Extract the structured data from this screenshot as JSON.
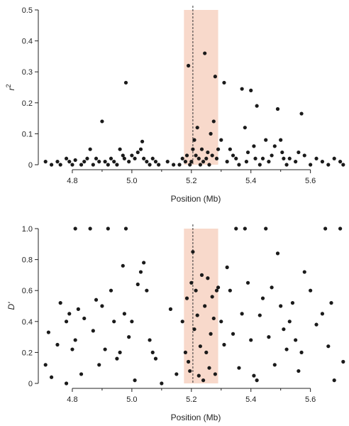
{
  "chart_data": [
    {
      "type": "scatter",
      "panel": "top",
      "xlabel": "Position (Mb)",
      "ylabel": "r",
      "ylabel_superscript": "2",
      "xlim": [
        4.7,
        5.72
      ],
      "ylim": [
        0,
        0.5
      ],
      "x_ticks": [
        4.8,
        5.0,
        5.2,
        5.4,
        5.6
      ],
      "x_tick_labels": [
        "4.8",
        "5.0",
        "5.2",
        "5.4",
        "5.6"
      ],
      "y_ticks": [
        0,
        0.1,
        0.2,
        0.3,
        0.4,
        0.5
      ],
      "y_tick_labels": [
        "0",
        "0.1",
        "0.2",
        "0.3",
        "0.4",
        "0.5"
      ],
      "grid": false,
      "highlight_region": [
        5.175,
        5.29
      ],
      "highlight_color": "#f8d9cb",
      "reference_line_x": 5.205,
      "point_color": "#1a1a1a",
      "points": [
        [
          4.71,
          0.01
        ],
        [
          4.73,
          0.0
        ],
        [
          4.75,
          0.01
        ],
        [
          4.76,
          0.0
        ],
        [
          4.78,
          0.02
        ],
        [
          4.79,
          0.01
        ],
        [
          4.8,
          0.0
        ],
        [
          4.81,
          0.015
        ],
        [
          4.83,
          0.0
        ],
        [
          4.84,
          0.01
        ],
        [
          4.85,
          0.02
        ],
        [
          4.86,
          0.05
        ],
        [
          4.87,
          0.0
        ],
        [
          4.88,
          0.02
        ],
        [
          4.89,
          0.01
        ],
        [
          4.9,
          0.14
        ],
        [
          4.91,
          0.01
        ],
        [
          4.92,
          0.0
        ],
        [
          4.93,
          0.02
        ],
        [
          4.94,
          0.01
        ],
        [
          4.95,
          0.0
        ],
        [
          4.96,
          0.05
        ],
        [
          4.97,
          0.03
        ],
        [
          4.975,
          0.02
        ],
        [
          4.98,
          0.265
        ],
        [
          4.99,
          0.01
        ],
        [
          5.0,
          0.03
        ],
        [
          5.01,
          0.02
        ],
        [
          5.02,
          0.04
        ],
        [
          5.03,
          0.05
        ],
        [
          5.035,
          0.075
        ],
        [
          5.04,
          0.02
        ],
        [
          5.05,
          0.01
        ],
        [
          5.06,
          0.0
        ],
        [
          5.07,
          0.02
        ],
        [
          5.08,
          0.01
        ],
        [
          5.09,
          0.0
        ],
        [
          5.12,
          0.01
        ],
        [
          5.14,
          0.0
        ],
        [
          5.16,
          0.0
        ],
        [
          5.17,
          0.02
        ],
        [
          5.18,
          0.01
        ],
        [
          5.185,
          0.03
        ],
        [
          5.19,
          0.32
        ],
        [
          5.195,
          0.0
        ],
        [
          5.2,
          0.01
        ],
        [
          5.205,
          0.05
        ],
        [
          5.21,
          0.08
        ],
        [
          5.215,
          0.03
        ],
        [
          5.22,
          0.12
        ],
        [
          5.225,
          0.02
        ],
        [
          5.23,
          0.0
        ],
        [
          5.235,
          0.05
        ],
        [
          5.24,
          0.01
        ],
        [
          5.245,
          0.36
        ],
        [
          5.25,
          0.02
        ],
        [
          5.255,
          0.04
        ],
        [
          5.26,
          0.0
        ],
        [
          5.265,
          0.1
        ],
        [
          5.27,
          0.03
        ],
        [
          5.275,
          0.14
        ],
        [
          5.28,
          0.285
        ],
        [
          5.285,
          0.02
        ],
        [
          5.29,
          0.05
        ],
        [
          5.3,
          0.08
        ],
        [
          5.31,
          0.265
        ],
        [
          5.32,
          0.01
        ],
        [
          5.33,
          0.05
        ],
        [
          5.34,
          0.03
        ],
        [
          5.35,
          0.02
        ],
        [
          5.36,
          0.0
        ],
        [
          5.37,
          0.245
        ],
        [
          5.38,
          0.12
        ],
        [
          5.385,
          0.01
        ],
        [
          5.39,
          0.04
        ],
        [
          5.4,
          0.24
        ],
        [
          5.41,
          0.06
        ],
        [
          5.415,
          0.02
        ],
        [
          5.42,
          0.19
        ],
        [
          5.43,
          0.0
        ],
        [
          5.44,
          0.02
        ],
        [
          5.45,
          0.08
        ],
        [
          5.46,
          0.01
        ],
        [
          5.47,
          0.03
        ],
        [
          5.48,
          0.06
        ],
        [
          5.49,
          0.18
        ],
        [
          5.5,
          0.08
        ],
        [
          5.505,
          0.04
        ],
        [
          5.51,
          0.02
        ],
        [
          5.52,
          0.0
        ],
        [
          5.53,
          0.02
        ],
        [
          5.55,
          0.01
        ],
        [
          5.56,
          0.04
        ],
        [
          5.57,
          0.165
        ],
        [
          5.58,
          0.03
        ],
        [
          5.6,
          0.0
        ],
        [
          5.62,
          0.02
        ],
        [
          5.64,
          0.01
        ],
        [
          5.66,
          0.0
        ],
        [
          5.68,
          0.02
        ],
        [
          5.7,
          0.01
        ],
        [
          5.71,
          0.0
        ]
      ]
    },
    {
      "type": "scatter",
      "panel": "bottom",
      "xlabel": "Position (Mb)",
      "ylabel": "D'",
      "xlim": [
        4.7,
        5.72
      ],
      "ylim": [
        0,
        1.0
      ],
      "x_ticks": [
        4.8,
        5.0,
        5.2,
        5.4,
        5.6
      ],
      "x_tick_labels": [
        "4.8",
        "5.0",
        "5.2",
        "5.4",
        "5.6"
      ],
      "y_ticks": [
        0,
        0.2,
        0.4,
        0.6,
        0.8,
        1.0
      ],
      "y_tick_labels": [
        "0",
        "0.2",
        "0.4",
        "0.6",
        "0.8",
        "1.0"
      ],
      "grid": false,
      "highlight_region": [
        5.175,
        5.29
      ],
      "highlight_color": "#f8d9cb",
      "reference_line_x": 5.205,
      "point_color": "#1a1a1a",
      "points": [
        [
          4.71,
          0.12
        ],
        [
          4.72,
          0.33
        ],
        [
          4.73,
          0.04
        ],
        [
          4.75,
          0.25
        ],
        [
          4.76,
          0.52
        ],
        [
          4.78,
          0.0
        ],
        [
          4.78,
          0.4
        ],
        [
          4.79,
          0.45
        ],
        [
          4.8,
          0.22
        ],
        [
          4.81,
          0.28
        ],
        [
          4.81,
          1.0
        ],
        [
          4.82,
          0.48
        ],
        [
          4.83,
          0.06
        ],
        [
          4.84,
          0.42
        ],
        [
          4.86,
          1.0
        ],
        [
          4.87,
          0.34
        ],
        [
          4.88,
          0.54
        ],
        [
          4.89,
          0.12
        ],
        [
          4.9,
          0.5
        ],
        [
          4.91,
          0.22
        ],
        [
          4.92,
          1.0
        ],
        [
          4.93,
          0.6
        ],
        [
          4.94,
          0.4
        ],
        [
          4.95,
          0.16
        ],
        [
          4.96,
          0.2
        ],
        [
          4.97,
          0.76
        ],
        [
          4.975,
          0.45
        ],
        [
          4.98,
          1.0
        ],
        [
          4.99,
          0.3
        ],
        [
          5.0,
          0.4
        ],
        [
          5.01,
          0.02
        ],
        [
          5.02,
          0.64
        ],
        [
          5.03,
          0.72
        ],
        [
          5.04,
          0.78
        ],
        [
          5.05,
          0.6
        ],
        [
          5.06,
          0.28
        ],
        [
          5.07,
          0.2
        ],
        [
          5.08,
          0.16
        ],
        [
          5.1,
          0.0
        ],
        [
          5.13,
          0.48
        ],
        [
          5.15,
          0.06
        ],
        [
          5.17,
          0.4
        ],
        [
          5.18,
          0.2
        ],
        [
          5.185,
          0.55
        ],
        [
          5.19,
          0.14
        ],
        [
          5.195,
          0.08
        ],
        [
          5.2,
          0.65
        ],
        [
          5.205,
          0.85
        ],
        [
          5.21,
          0.35
        ],
        [
          5.215,
          0.6
        ],
        [
          5.22,
          0.44
        ],
        [
          5.225,
          0.05
        ],
        [
          5.23,
          0.24
        ],
        [
          5.235,
          0.7
        ],
        [
          5.24,
          0.02
        ],
        [
          5.245,
          0.5
        ],
        [
          5.25,
          0.2
        ],
        [
          5.255,
          0.68
        ],
        [
          5.26,
          0.1
        ],
        [
          5.265,
          0.32
        ],
        [
          5.27,
          0.56
        ],
        [
          5.275,
          0.42
        ],
        [
          5.28,
          0.06
        ],
        [
          5.285,
          0.6
        ],
        [
          5.29,
          0.62
        ],
        [
          5.3,
          0.4
        ],
        [
          5.31,
          0.25
        ],
        [
          5.32,
          0.75
        ],
        [
          5.33,
          0.6
        ],
        [
          5.34,
          0.32
        ],
        [
          5.35,
          1.0
        ],
        [
          5.36,
          0.1
        ],
        [
          5.37,
          0.45
        ],
        [
          5.38,
          1.0
        ],
        [
          5.39,
          0.65
        ],
        [
          5.4,
          0.28
        ],
        [
          5.41,
          0.05
        ],
        [
          5.42,
          0.02
        ],
        [
          5.43,
          0.44
        ],
        [
          5.44,
          0.55
        ],
        [
          5.45,
          1.0
        ],
        [
          5.46,
          0.3
        ],
        [
          5.47,
          0.62
        ],
        [
          5.48,
          0.12
        ],
        [
          5.49,
          0.84
        ],
        [
          5.5,
          0.5
        ],
        [
          5.51,
          0.35
        ],
        [
          5.52,
          0.22
        ],
        [
          5.53,
          0.4
        ],
        [
          5.54,
          0.52
        ],
        [
          5.55,
          0.28
        ],
        [
          5.56,
          0.08
        ],
        [
          5.57,
          0.2
        ],
        [
          5.58,
          0.72
        ],
        [
          5.6,
          0.6
        ],
        [
          5.62,
          0.38
        ],
        [
          5.64,
          0.45
        ],
        [
          5.65,
          1.0
        ],
        [
          5.66,
          0.24
        ],
        [
          5.67,
          0.52
        ],
        [
          5.68,
          0.02
        ],
        [
          5.7,
          1.0
        ],
        [
          5.71,
          0.14
        ]
      ]
    }
  ]
}
